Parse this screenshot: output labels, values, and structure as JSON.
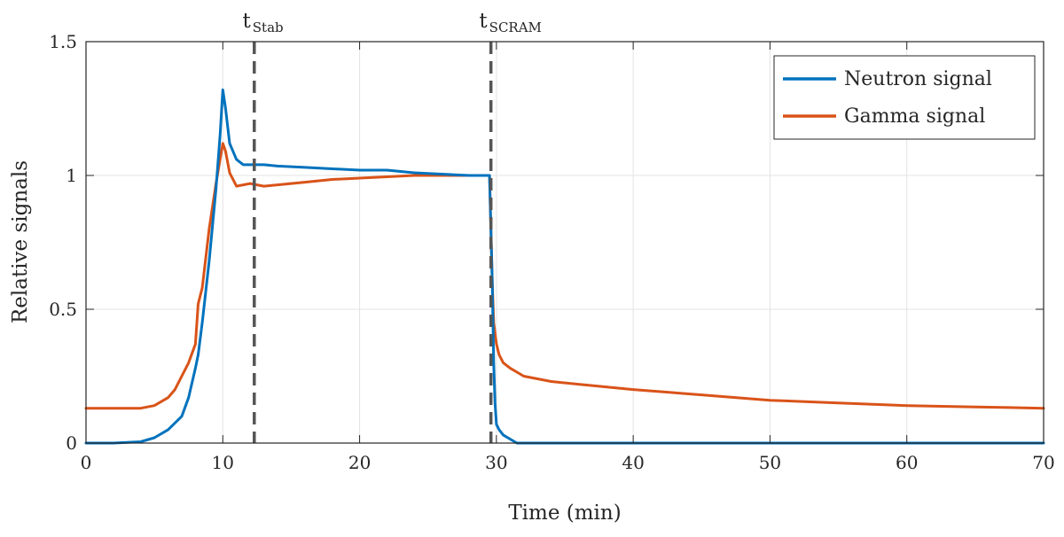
{
  "chart_data": {
    "type": "line",
    "xlabel": "Time (min)",
    "ylabel": "Relative signals",
    "xlim": [
      0,
      70
    ],
    "ylim": [
      0,
      1.5
    ],
    "xticks": [
      "0",
      "10",
      "20",
      "30",
      "40",
      "50",
      "60",
      "70"
    ],
    "yticks": [
      "0",
      "0.5",
      "1",
      "1.5"
    ],
    "grid": true,
    "legend_position": "top-right",
    "series": [
      {
        "name": "Neutron signal",
        "color": "#0072BD",
        "x": [
          0,
          2,
          4,
          5,
          6,
          7,
          7.5,
          8,
          8.2,
          8.5,
          9,
          9.5,
          9.8,
          10,
          10.2,
          10.5,
          11,
          11.5,
          12,
          13,
          14,
          16,
          18,
          20,
          22,
          24,
          26,
          28,
          29.5,
          29.7,
          29.8,
          29.9,
          30,
          30.2,
          30.5,
          31,
          31.5,
          35,
          40,
          50,
          60,
          70
        ],
        "y": [
          0,
          0,
          0.005,
          0.02,
          0.05,
          0.1,
          0.17,
          0.28,
          0.33,
          0.45,
          0.68,
          0.95,
          1.15,
          1.32,
          1.25,
          1.12,
          1.06,
          1.04,
          1.04,
          1.04,
          1.035,
          1.03,
          1.025,
          1.02,
          1.02,
          1.01,
          1.005,
          1.0,
          1.0,
          0.6,
          0.3,
          0.15,
          0.07,
          0.05,
          0.03,
          0.015,
          0.0,
          0.0,
          0.0,
          0.0,
          0.0,
          0.0
        ]
      },
      {
        "name": "Gamma signal",
        "color": "#D95319",
        "x": [
          0,
          2,
          4,
          5,
          6,
          6.5,
          7,
          7.5,
          8,
          8.2,
          8.5,
          9,
          9.5,
          10,
          10.2,
          10.5,
          11,
          11.5,
          12,
          13,
          14,
          16,
          18,
          20,
          22,
          24,
          26,
          28,
          29.5,
          29.7,
          29.8,
          30,
          30.2,
          30.5,
          31,
          32,
          34,
          36,
          40,
          45,
          50,
          55,
          60,
          65,
          70
        ],
        "y": [
          0.13,
          0.13,
          0.13,
          0.14,
          0.17,
          0.2,
          0.25,
          0.3,
          0.37,
          0.52,
          0.58,
          0.8,
          0.97,
          1.12,
          1.09,
          1.01,
          0.96,
          0.965,
          0.97,
          0.96,
          0.965,
          0.975,
          0.985,
          0.99,
          0.995,
          1.0,
          1.0,
          1.0,
          1.0,
          0.6,
          0.45,
          0.37,
          0.33,
          0.3,
          0.28,
          0.25,
          0.23,
          0.22,
          0.2,
          0.18,
          0.16,
          0.15,
          0.14,
          0.135,
          0.13
        ]
      }
    ],
    "markers": [
      {
        "label": "t",
        "subscript": "Stab",
        "x": 12.3
      },
      {
        "label": "t",
        "subscript": "SCRAM",
        "x": 29.6
      }
    ]
  }
}
